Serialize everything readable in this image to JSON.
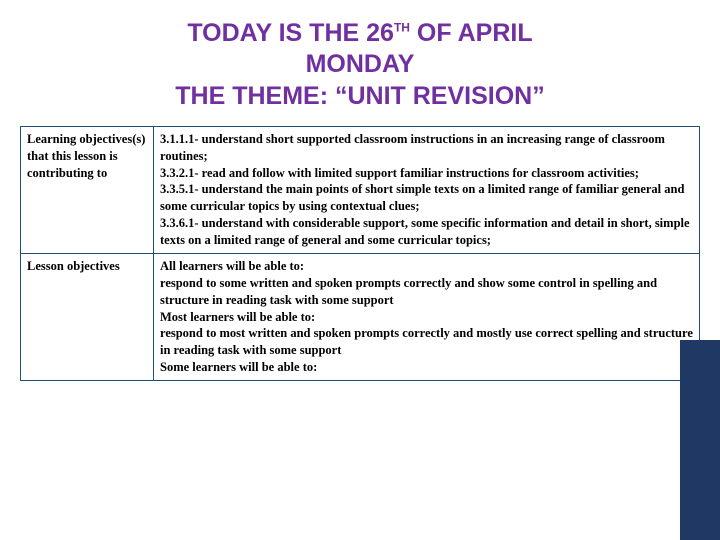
{
  "title": {
    "line1_pre": "TODAY IS THE 26",
    "line1_sup": "TH",
    "line1_post": " OF APRIL",
    "line2": "MONDAY",
    "line3": "THE THEME: “UNIT REVISION”",
    "color": "#7030a0",
    "fontsize": 25
  },
  "accent": {
    "bg_color": "#1f3864"
  },
  "table": {
    "border_color": "#1f4e79",
    "body_fontsize": 12.5,
    "rows": [
      {
        "left": "Learning objectives(s) that this lesson is contributing to",
        "right": "3.1.1.1- understand short supported classroom instructions in an increasing range of classroom routines;\n3.3.2.1- read and follow with limited support familiar instructions for classroom activities;\n3.3.5.1- understand the main points of short simple texts on a limited range of familiar general and some curricular topics by using contextual clues;\n3.3.6.1- understand with considerable support, some specific information and detail in short, simple texts on a limited range of general and some curricular topics;"
      },
      {
        "left": "Lesson objectives",
        "right": "All learners will be able to:\nrespond to some written and spoken prompts correctly and show some control in spelling and structure in reading task with some support\nMost learners will be able to:\nrespond to most written and spoken prompts correctly and mostly use correct spelling and structure in reading task with some support\nSome learners will be able to:"
      }
    ]
  }
}
